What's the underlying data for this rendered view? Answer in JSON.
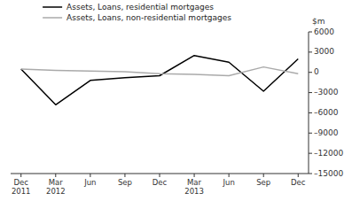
{
  "chart_data": {
    "type": "line",
    "categories": [
      "Dec\n2011",
      "Mar\n2012",
      "Jun",
      "Sep",
      "Dec",
      "Mar\n2013",
      "Jun",
      "Sep",
      "Dec"
    ],
    "series": [
      {
        "name": "Assets, Loans, residential mortgages",
        "color": "#000000",
        "values": [
          500,
          -4800,
          -1200,
          -800,
          -500,
          2500,
          1500,
          -2800,
          2000
        ]
      },
      {
        "name": "Assets, Loans, non-residential mortgages",
        "color": "#aaaaaa",
        "values": [
          500,
          300,
          200,
          100,
          -200,
          -300,
          -500,
          800,
          -200
        ]
      }
    ],
    "y_label": "$m",
    "ylim": [
      -15000,
      6000
    ],
    "yticks": [
      6000,
      3000,
      0,
      {
        "value": -3000,
        "label": "–3000"
      },
      {
        "value": -6000,
        "label": "–6000"
      },
      {
        "value": -9000,
        "label": "–9000"
      },
      {
        "value": -12000,
        "label": "–12000"
      },
      {
        "value": -15000,
        "label": "–15000"
      }
    ],
    "grid": false,
    "legend": "top"
  }
}
